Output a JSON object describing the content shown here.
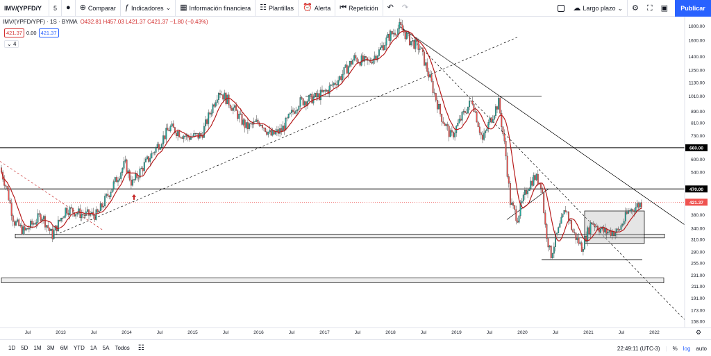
{
  "toolbar": {
    "symbol": "IMV/(YPFD/Y",
    "interval": "5",
    "compare": "Comparar",
    "indicators": "Indicadores",
    "financials": "Información financiera",
    "templates": "Plantillas",
    "alert": "Alerta",
    "replay": "Repetición",
    "layout": "Largo plazo",
    "publish": "Publicar"
  },
  "legend": {
    "title": "IMV/(YPFD/YPF) · 1S · BYMA",
    "ohlc": "O432.81 H457.03 L421.37 C421.37 −1.80 (−0.43%)",
    "price_badge": "421.37",
    "change": "0.00",
    "price_badge2": "421.37",
    "collapse": "4"
  },
  "chart_data": {
    "type": "candlestick",
    "scale": "log",
    "x_ticks": [
      "Jul",
      "2013",
      "Jul",
      "2014",
      "Jul",
      "2015",
      "Jul",
      "2016",
      "Jul",
      "2017",
      "Jul",
      "2018",
      "Jul",
      "2019",
      "Jul",
      "2020",
      "Jul",
      "2021",
      "Jul",
      "2022"
    ],
    "y_ticks": [
      1800.0,
      1600.0,
      1400.0,
      1250.0,
      1130.0,
      1010.0,
      890.0,
      810.0,
      730.0,
      660.0,
      600.0,
      540.0,
      470.0,
      421.37,
      380.0,
      340.0,
      310.0,
      280.0,
      255.0,
      231.0,
      211.0,
      191.0,
      173.0,
      158.0
    ],
    "y_range": [
      150,
      1900
    ],
    "last_price": 421.37,
    "highlighted_levels": [
      660.0,
      470.0
    ],
    "colors": {
      "up": "#26a69a",
      "down": "#ef5350",
      "ma": "#b71c1c",
      "last_price_badge": "#ef5350",
      "level_badge": "#000000"
    }
  },
  "bottombar": {
    "ranges": [
      "1D",
      "5D",
      "1M",
      "3M",
      "6M",
      "YTD",
      "1A",
      "5A",
      "Todos"
    ],
    "time": "22:49:11 (UTC-3)",
    "percent": "%",
    "log": "log",
    "auto": "auto"
  }
}
